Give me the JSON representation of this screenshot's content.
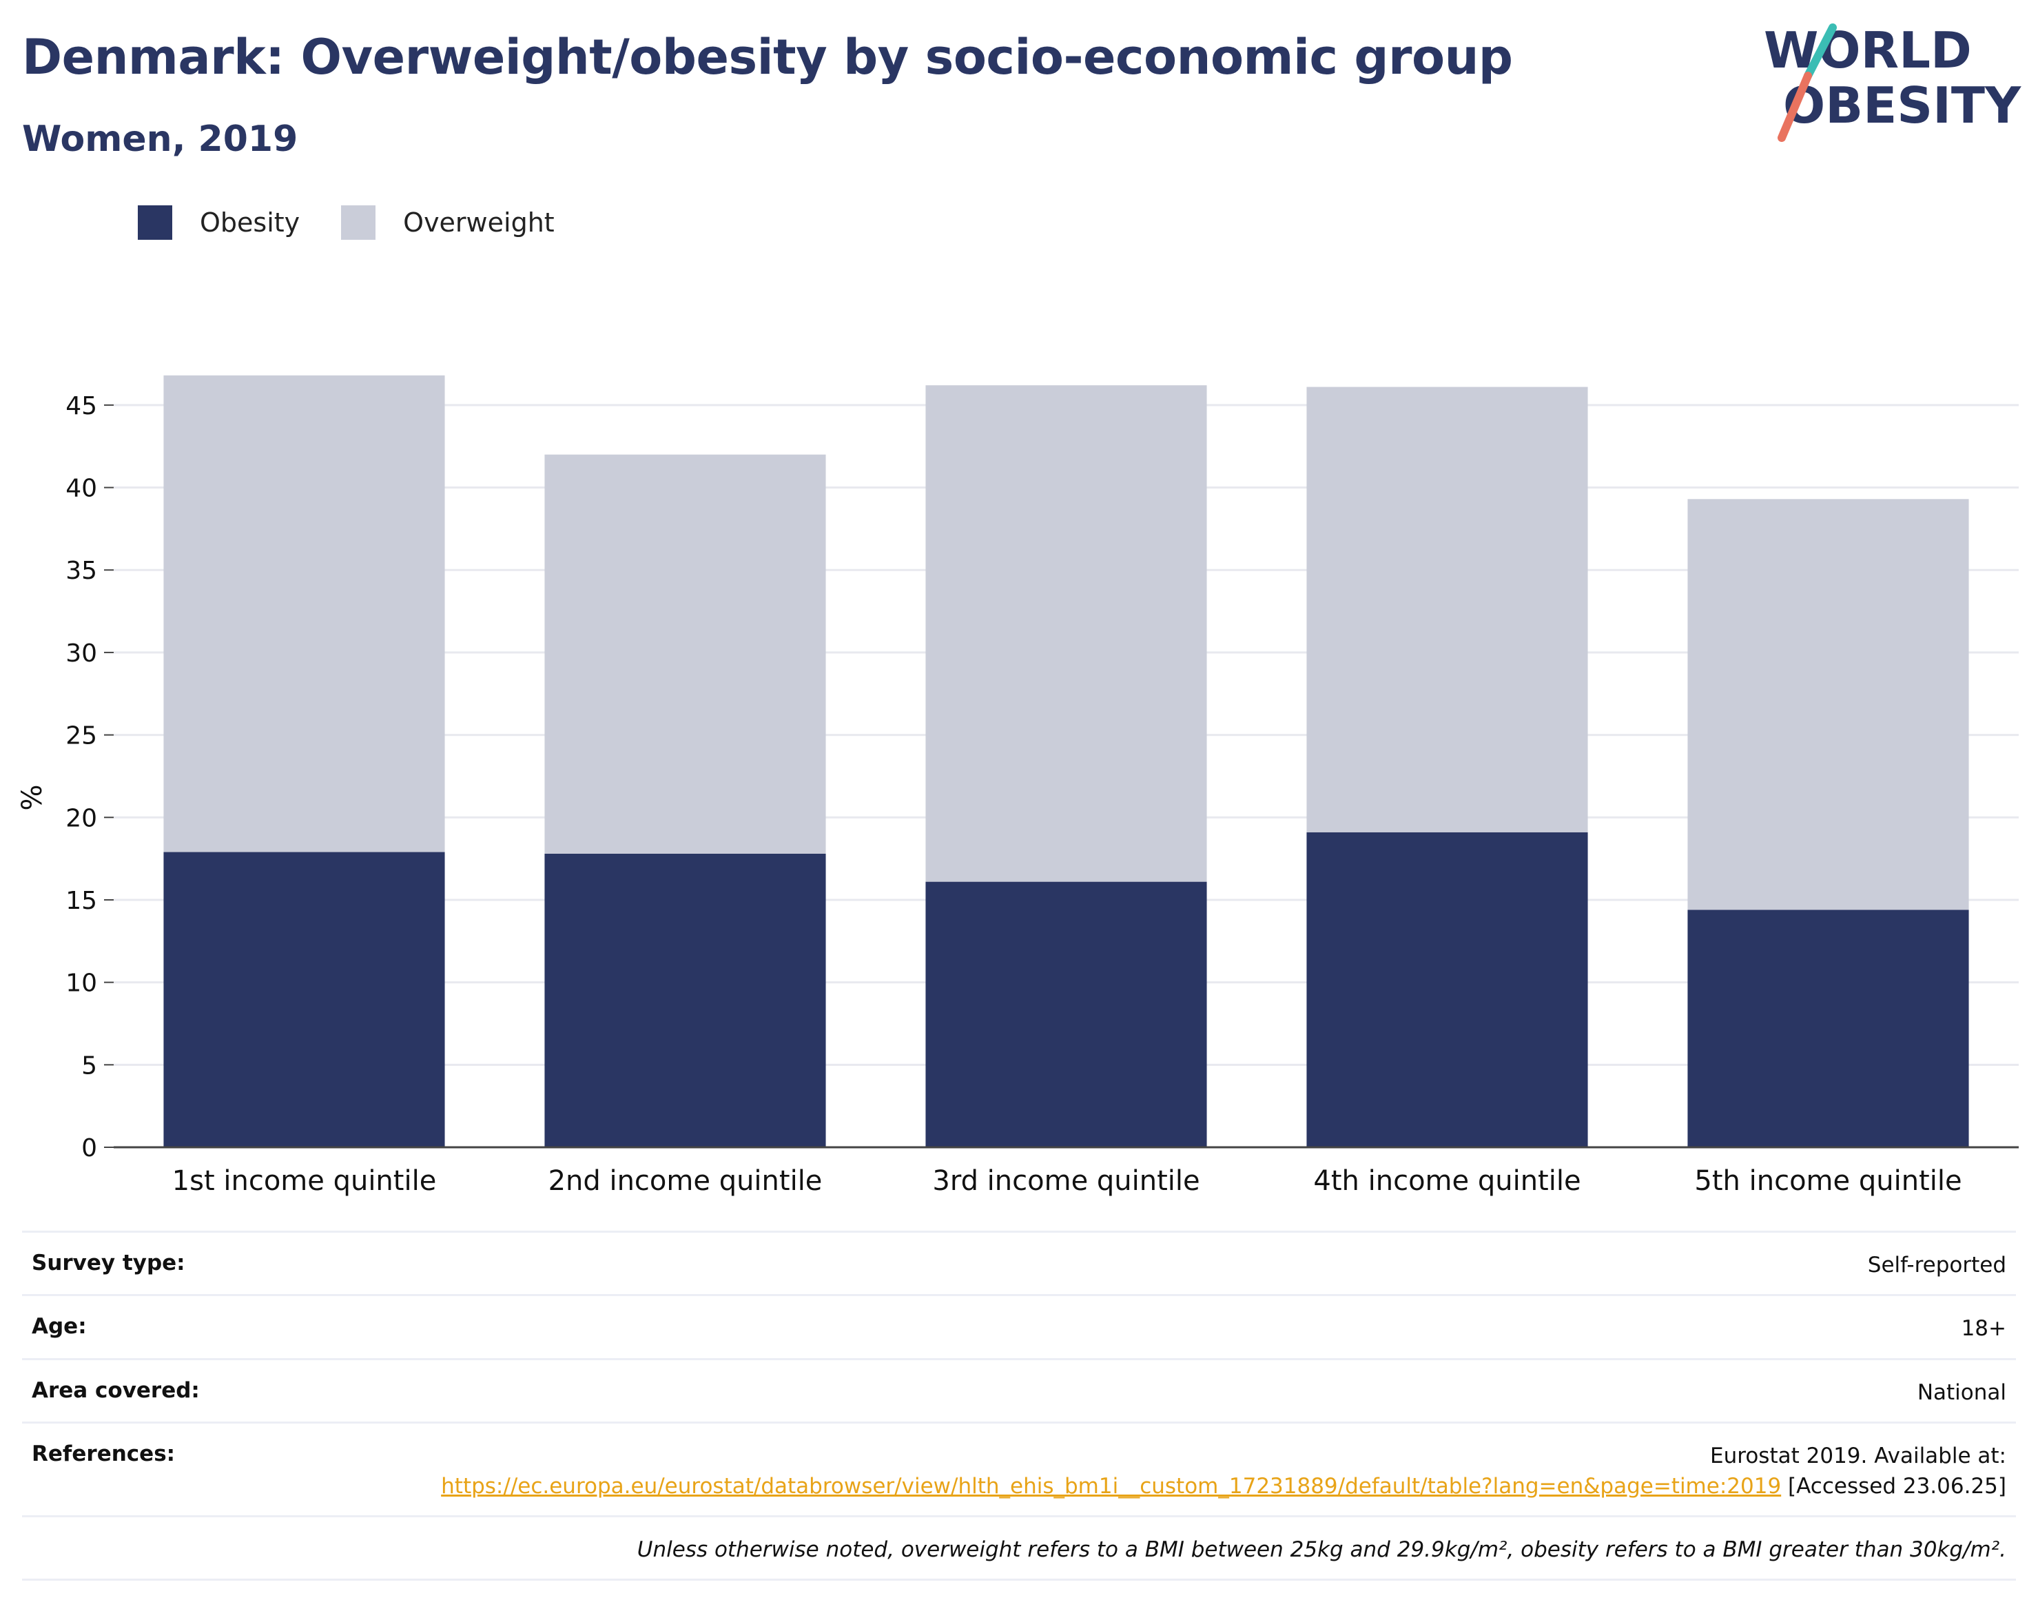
{
  "header": {
    "title": "Denmark: Overweight/obesity by socio-economic group",
    "subtitle": "Women, 2019"
  },
  "logo": {
    "line1": "WORLD",
    "line2": "OBESITY"
  },
  "colors": {
    "obesity": "#2a3663",
    "overweight": "#cacdd9",
    "title": "#2a3663",
    "link": "#e8a317",
    "logo_teal": "#3bbdb4",
    "logo_coral": "#e9735f"
  },
  "chart_data": {
    "type": "bar",
    "stacked": true,
    "categories": [
      "1st income quintile",
      "2nd income quintile",
      "3rd income quintile",
      "4th income quintile",
      "5th income quintile"
    ],
    "series": [
      {
        "name": "Obesity",
        "values": [
          17.9,
          17.8,
          16.1,
          19.1,
          14.4
        ]
      },
      {
        "name": "Overweight",
        "values": [
          28.9,
          24.2,
          30.1,
          27.0,
          24.9
        ]
      }
    ],
    "ylabel": "%",
    "ylim": [
      0,
      47
    ],
    "yticks": [
      0,
      5,
      10,
      15,
      20,
      25,
      30,
      35,
      40,
      45
    ],
    "grid": true,
    "legend_position": "top-left"
  },
  "info": {
    "survey_type": {
      "label": "Survey type:",
      "value": "Self-reported"
    },
    "age": {
      "label": "Age:",
      "value": "18+"
    },
    "area": {
      "label": "Area covered:",
      "value": "National"
    },
    "references": {
      "label": "References:",
      "text_before": "Eurostat 2019. Available at:",
      "link": "https://ec.europa.eu/eurostat/databrowser/view/hlth_ehis_bm1i__custom_17231889/default/table?lang=en&page=time:2019",
      "text_after": "[Accessed 23.06.25]"
    },
    "note": "Unless otherwise noted, overweight refers to a BMI between 25kg and 29.9kg/m², obesity refers to a BMI greater than 30kg/m²."
  }
}
